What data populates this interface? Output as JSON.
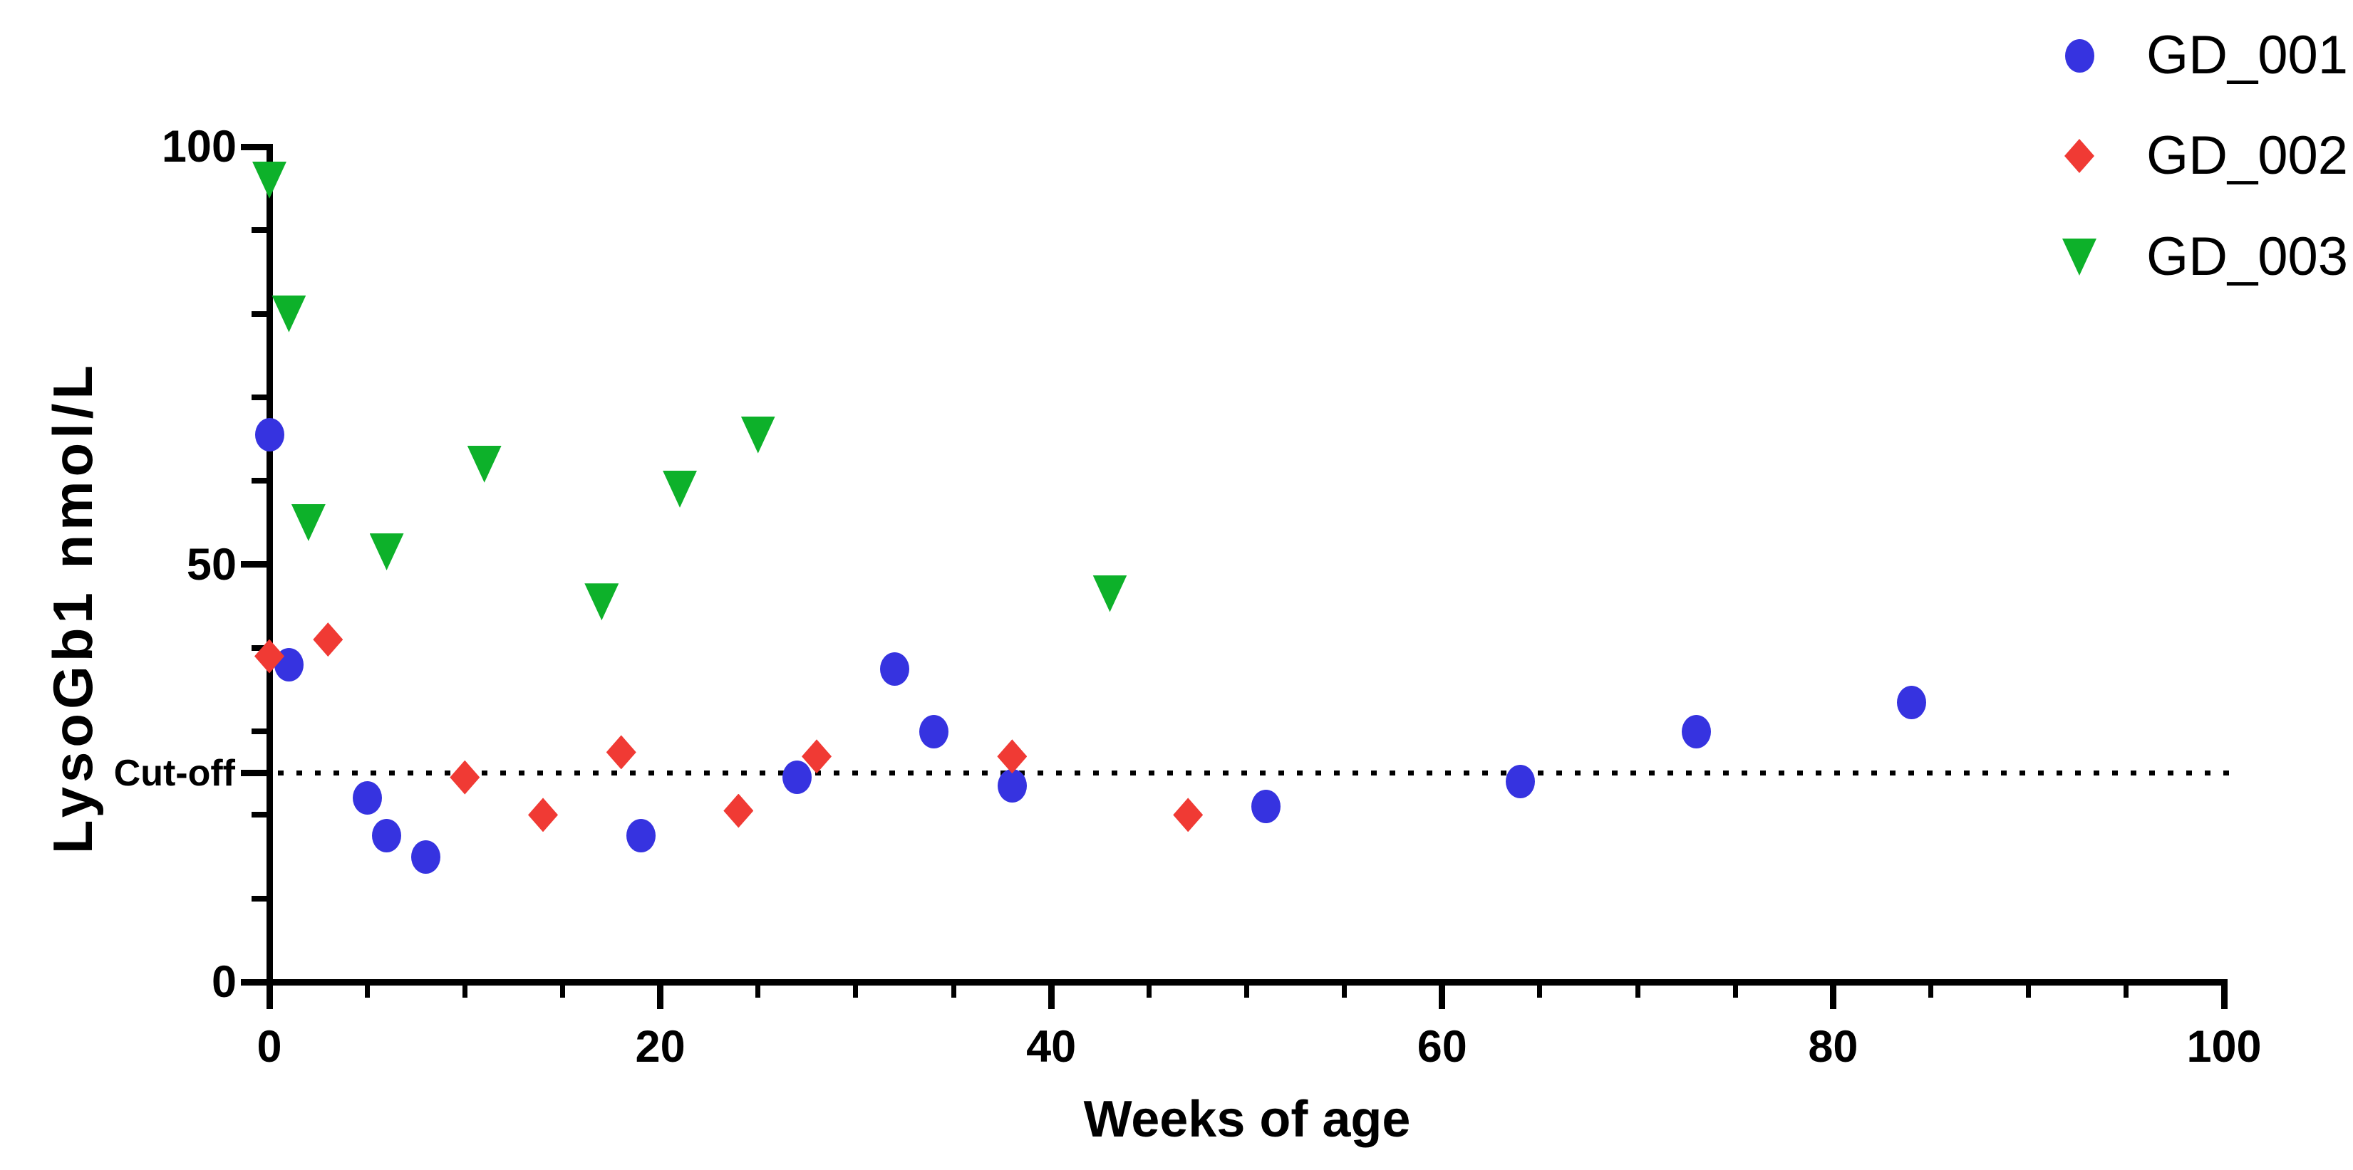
{
  "chart_data": {
    "type": "scatter",
    "title": "",
    "xlabel": "Weeks of age",
    "ylabel": "LysoGb1 nmol/L",
    "xlim": [
      0,
      100
    ],
    "ylim": [
      0,
      100
    ],
    "x_major_ticks": [
      0,
      20,
      40,
      60,
      80,
      100
    ],
    "x_minor_step": 5,
    "y_major_ticks": [
      0,
      50,
      100
    ],
    "y_minor_step": 10,
    "grid": false,
    "legend_position": "top-right",
    "cutoff": {
      "label": "Cut-off",
      "value": 25,
      "line_style": "dotted",
      "color": "#000000"
    },
    "colors": {
      "gd_001": "#3633E0",
      "gd_002": "#F03A34",
      "gd_003": "#0DB12A",
      "axis": "#000000"
    },
    "series": [
      {
        "name": "GD_001",
        "marker": "circle",
        "color": "#3633E0",
        "points": [
          [
            0,
            65.5
          ],
          [
            1,
            38
          ],
          [
            5,
            22
          ],
          [
            6,
            17.5
          ],
          [
            8,
            15
          ],
          [
            19,
            17.5
          ],
          [
            27,
            24.5
          ],
          [
            32,
            37.5
          ],
          [
            34,
            30
          ],
          [
            38,
            23.5
          ],
          [
            51,
            21
          ],
          [
            64,
            24
          ],
          [
            73,
            30
          ],
          [
            84,
            33.5
          ]
        ]
      },
      {
        "name": "GD_002",
        "marker": "diamond",
        "color": "#F03A34",
        "points": [
          [
            0,
            39
          ],
          [
            3,
            41
          ],
          [
            10,
            24.5
          ],
          [
            14,
            20
          ],
          [
            18,
            27.5
          ],
          [
            24,
            20.5
          ],
          [
            28,
            27
          ],
          [
            38,
            27
          ],
          [
            47,
            20
          ]
        ]
      },
      {
        "name": "GD_003",
        "marker": "triangle-down",
        "color": "#0DB12A",
        "points": [
          [
            0,
            96
          ],
          [
            1,
            80
          ],
          [
            2,
            55
          ],
          [
            6,
            51.5
          ],
          [
            11,
            62
          ],
          [
            17,
            45.5
          ],
          [
            21,
            59
          ],
          [
            25,
            65.5
          ],
          [
            43,
            46.5
          ]
        ]
      }
    ]
  }
}
